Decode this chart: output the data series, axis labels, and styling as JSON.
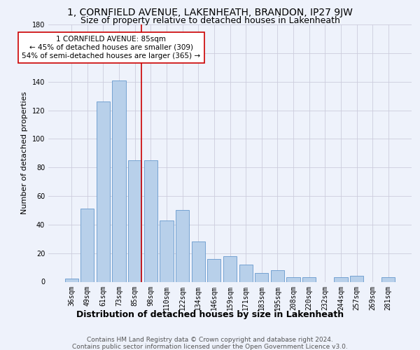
{
  "title": "1, CORNFIELD AVENUE, LAKENHEATH, BRANDON, IP27 9JW",
  "subtitle": "Size of property relative to detached houses in Lakenheath",
  "xlabel": "Distribution of detached houses by size in Lakenheath",
  "ylabel": "Number of detached properties",
  "categories": [
    "36sqm",
    "49sqm",
    "61sqm",
    "73sqm",
    "85sqm",
    "98sqm",
    "110sqm",
    "122sqm",
    "134sqm",
    "146sqm",
    "159sqm",
    "171sqm",
    "183sqm",
    "195sqm",
    "208sqm",
    "220sqm",
    "232sqm",
    "244sqm",
    "257sqm",
    "269sqm",
    "281sqm"
  ],
  "values": [
    2,
    51,
    126,
    141,
    85,
    85,
    43,
    50,
    28,
    16,
    18,
    12,
    6,
    8,
    3,
    3,
    0,
    3,
    4,
    0,
    3
  ],
  "bar_color": "#b8d0ea",
  "bar_edge_color": "#6699cc",
  "highlight_bar_idx": 4,
  "highlight_color": "#cc0000",
  "annotation_line1": "1 CORNFIELD AVENUE: 85sqm",
  "annotation_line2": "← 45% of detached houses are smaller (309)",
  "annotation_line3": "54% of semi-detached houses are larger (365) →",
  "annotation_box_color": "#ffffff",
  "annotation_box_edge": "#cc0000",
  "ylim": [
    0,
    180
  ],
  "yticks": [
    0,
    20,
    40,
    60,
    80,
    100,
    120,
    140,
    160,
    180
  ],
  "background_color": "#eef2fb",
  "grid_color": "#ccccdd",
  "footer_line1": "Contains HM Land Registry data © Crown copyright and database right 2024.",
  "footer_line2": "Contains public sector information licensed under the Open Government Licence v3.0.",
  "title_fontsize": 10,
  "subtitle_fontsize": 9,
  "xlabel_fontsize": 9,
  "ylabel_fontsize": 8,
  "tick_fontsize": 7,
  "annotation_fontsize": 7.5,
  "footer_fontsize": 6.5
}
